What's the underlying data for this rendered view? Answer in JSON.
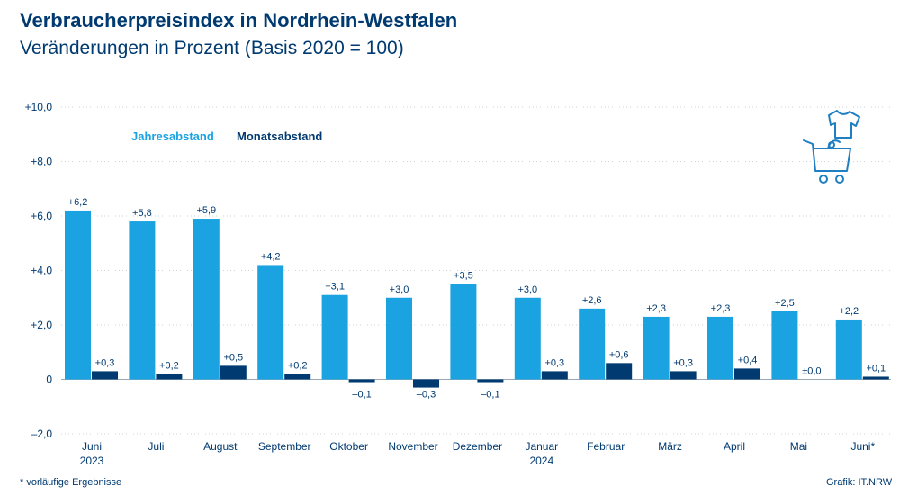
{
  "title": "Verbraucherpreisindex in Nordrhein-Westfalen",
  "subtitle": "Veränderungen in Prozent (Basis 2020 = 100)",
  "footnote": "*  vorläufige Ergebnisse",
  "source": "Grafik: IT.NRW",
  "icon": "shopping-cart-icon",
  "colors": {
    "jahresabstand": "#1aa3e0",
    "monatsabstand": "#003a70",
    "text": "#003a70",
    "grid": "#c9d3dd"
  },
  "chart_data": {
    "type": "bar",
    "categories": [
      [
        "Juni",
        "2023"
      ],
      [
        "Juli"
      ],
      [
        "August"
      ],
      [
        "September"
      ],
      [
        "Oktober"
      ],
      [
        "November"
      ],
      [
        "Dezember"
      ],
      [
        "Januar",
        "2024"
      ],
      [
        "Februar"
      ],
      [
        "März"
      ],
      [
        "April"
      ],
      [
        "Mai"
      ],
      [
        "Juni*"
      ]
    ],
    "ylim": [
      -2.0,
      10.0
    ],
    "yticks": [
      10,
      8,
      6,
      4,
      2,
      0,
      -2
    ],
    "ytick_labels": [
      "+10,0",
      "+8,0",
      "+6,0",
      "+4,0",
      "+2,0",
      "0",
      "–2,0"
    ],
    "grid": true,
    "legend_placement": "top-left",
    "series": [
      {
        "name": "Jahresabstand",
        "values": [
          6.2,
          5.8,
          5.9,
          4.2,
          3.1,
          3.0,
          3.5,
          3.0,
          2.6,
          2.3,
          2.3,
          2.5,
          2.2
        ],
        "labels": [
          "+6,2",
          "+5,8",
          "+5,9",
          "+4,2",
          "+3,1",
          "+3,0",
          "+3,5",
          "+3,0",
          "+2,6",
          "+2,3",
          "+2,3",
          "+2,5",
          "+2,2"
        ]
      },
      {
        "name": "Monatsabstand",
        "values": [
          0.3,
          0.2,
          0.5,
          0.2,
          -0.1,
          -0.3,
          -0.1,
          0.3,
          0.6,
          0.3,
          0.4,
          0.0,
          0.1
        ],
        "labels": [
          "+0,3",
          "+0,2",
          "+0,5",
          "+0,2",
          "–0,1",
          "–0,3",
          "–0,1",
          "+0,3",
          "+0,6",
          "+0,3",
          "+0,4",
          "±0,0",
          "+0,1"
        ]
      }
    ]
  }
}
